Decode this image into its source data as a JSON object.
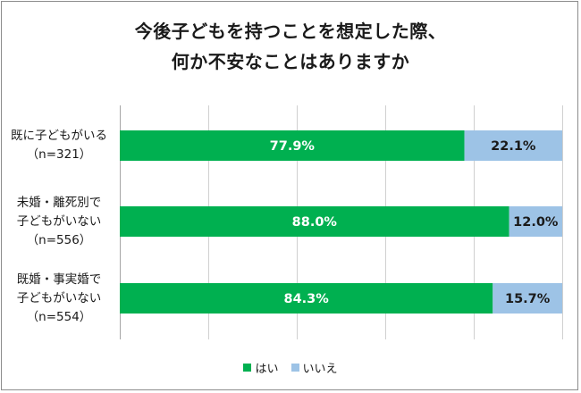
{
  "chart_data": {
    "type": "bar",
    "orientation": "horizontal",
    "stacked": true,
    "title_lines": [
      "今後子どもを持つことを想定した際、",
      "何か不安なことはありますか"
    ],
    "categories": [
      [
        "既に子どもがいる",
        "（n=321）"
      ],
      [
        "未婚・離死別で",
        "子どもがいない",
        "（n=556）"
      ],
      [
        "既婚・事実婚で",
        "子どもがいない",
        "（n=554）"
      ]
    ],
    "series": [
      {
        "name": "はい",
        "color": "#00b050",
        "values": [
          77.9,
          88.0,
          84.3
        ],
        "labels": [
          "77.9%",
          "88.0%",
          "84.3%"
        ]
      },
      {
        "name": "いいえ",
        "color": "#9dc3e6",
        "values": [
          22.1,
          12.0,
          15.7
        ],
        "labels": [
          "22.1%",
          "12.0%",
          "15.7%"
        ]
      }
    ],
    "xlim": [
      0,
      100
    ],
    "grid": true,
    "legend_position": "bottom"
  }
}
